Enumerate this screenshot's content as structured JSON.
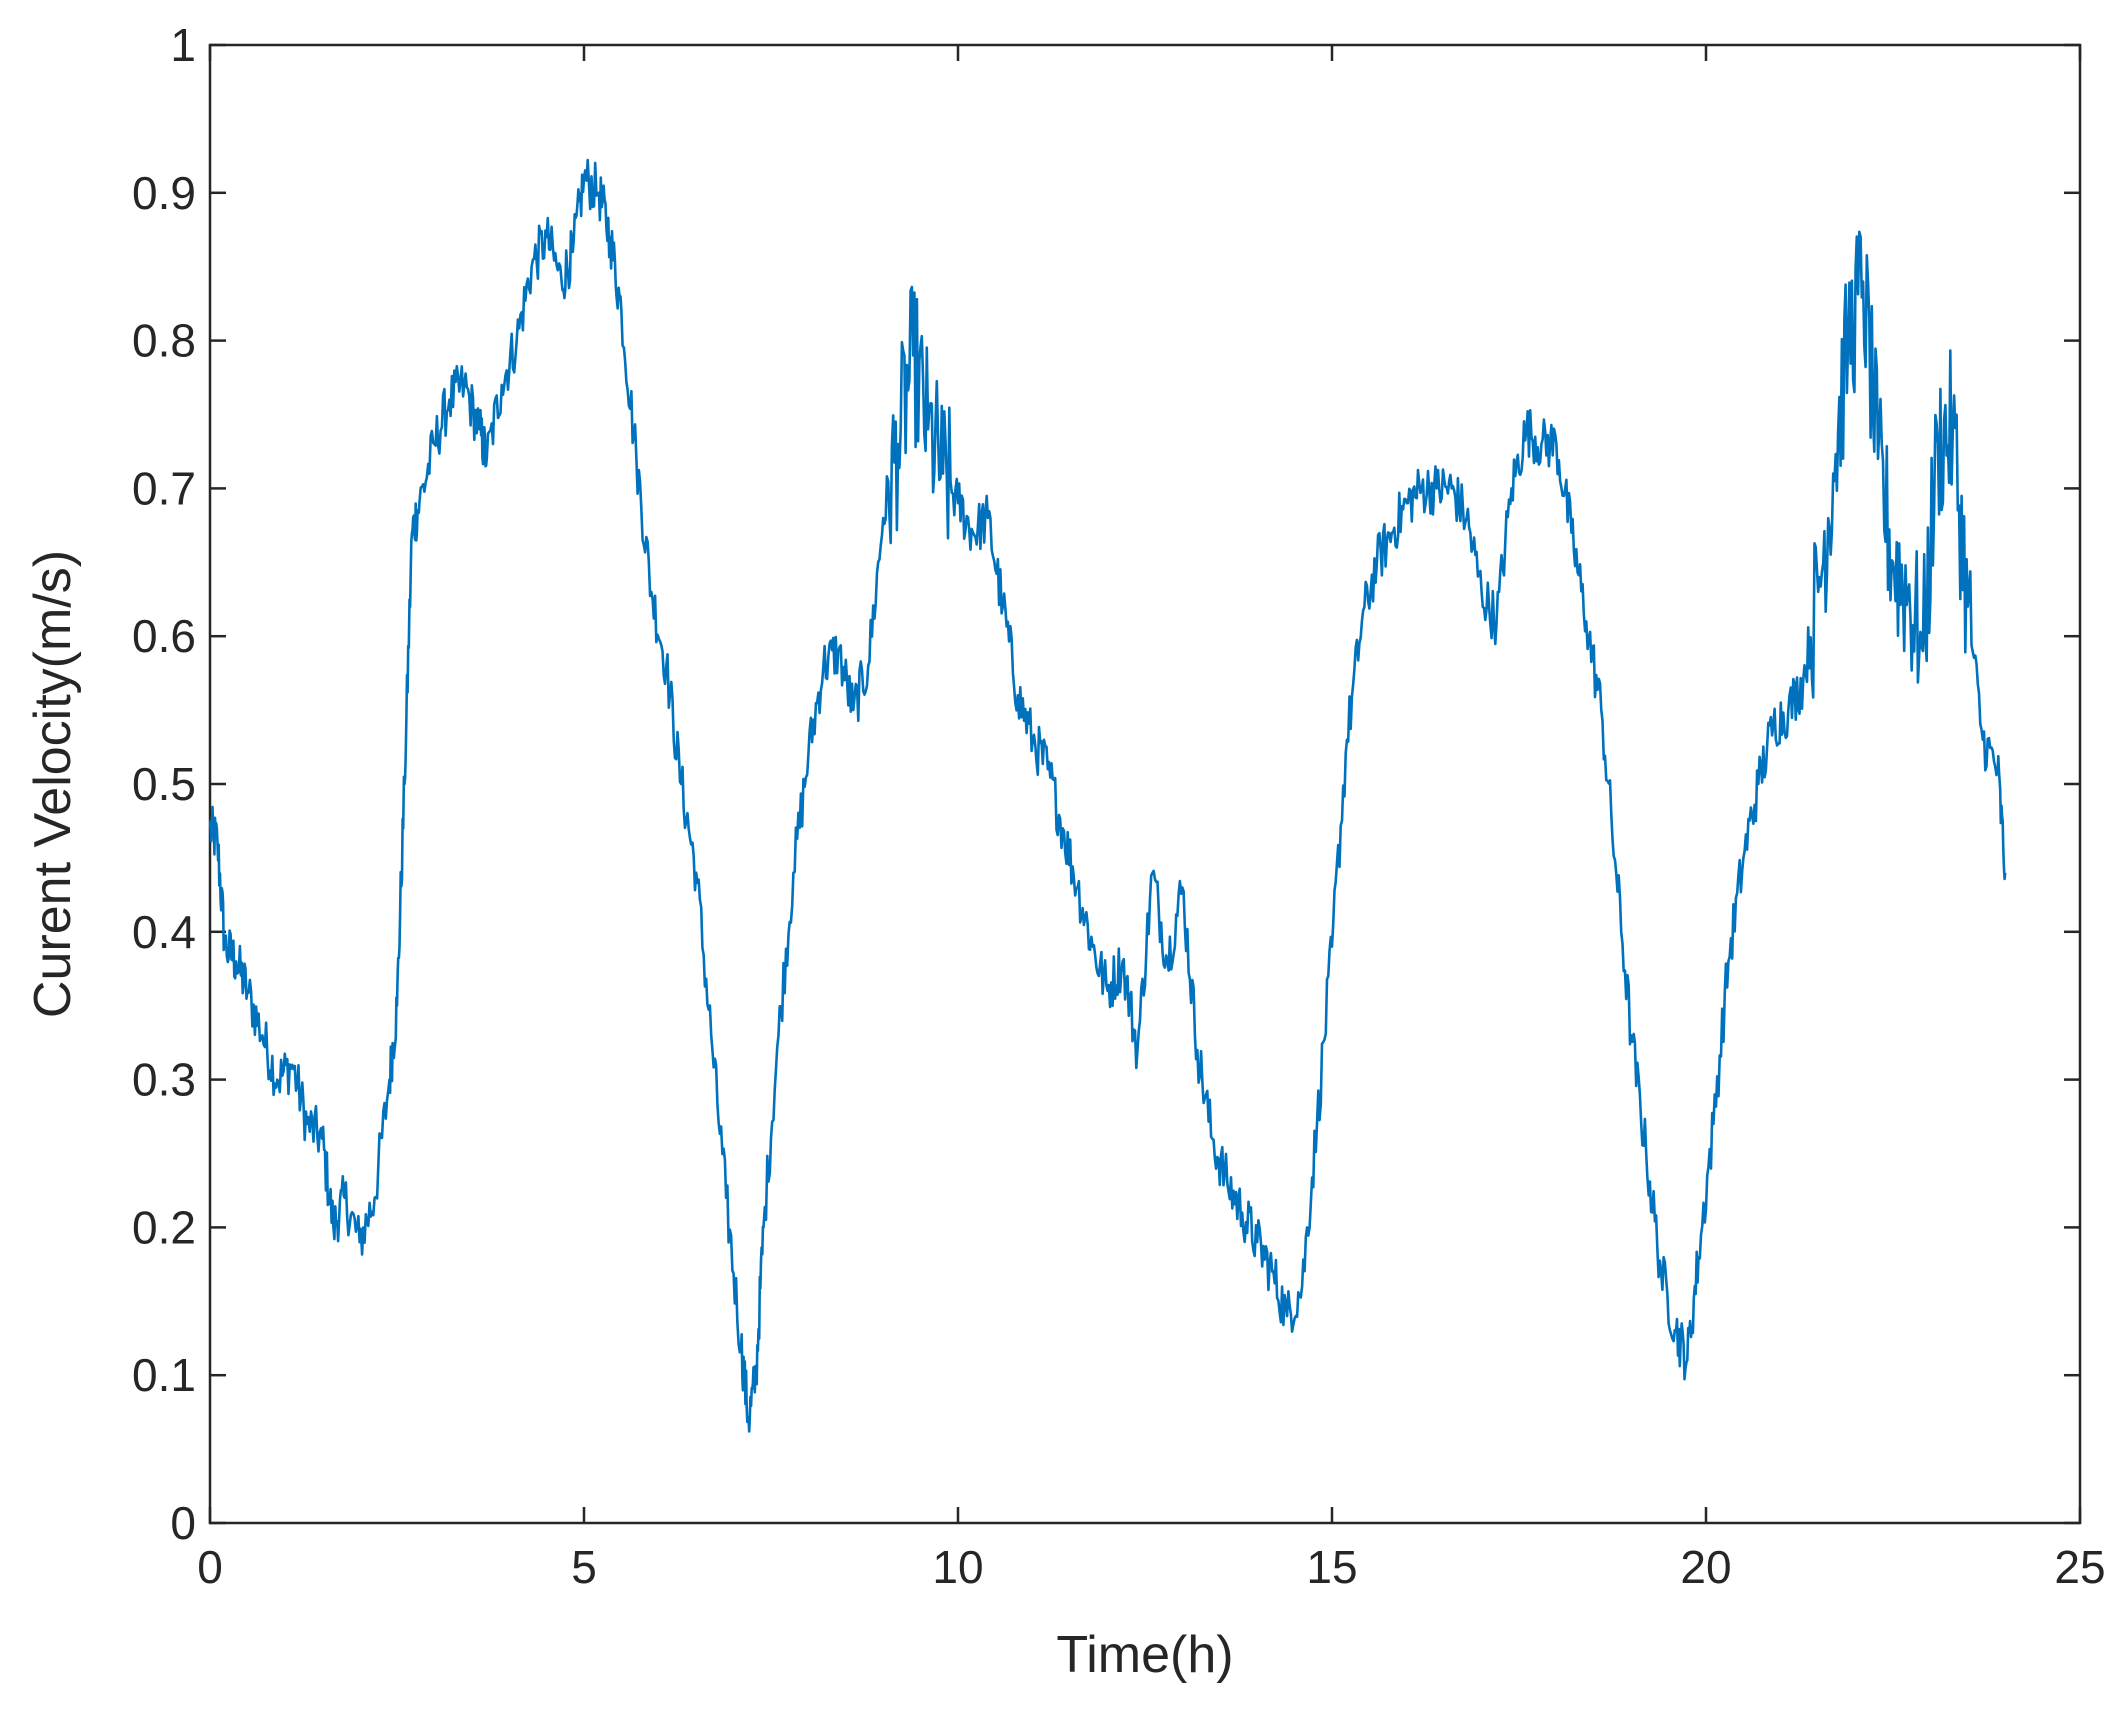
{
  "chart_data": {
    "type": "line",
    "title": "",
    "xlabel": "Time(h)",
    "ylabel": "Curent Velocity(m/s)",
    "xlim": [
      0,
      25
    ],
    "ylim": [
      0,
      1
    ],
    "xticks": [
      "0",
      "5",
      "10",
      "15",
      "20",
      "25"
    ],
    "yticks": [
      "0",
      "0.1",
      "0.2",
      "0.3",
      "0.4",
      "0.5",
      "0.6",
      "0.7",
      "0.8",
      "0.9",
      "1"
    ],
    "grid": false,
    "legend": "none",
    "series": [
      {
        "color": "#0072BD",
        "x": [
          0,
          0.1,
          0.2,
          0.35,
          0.5,
          0.7,
          0.9,
          1.1,
          1.3,
          1.5,
          1.65,
          1.8,
          2.0,
          2.2,
          2.4,
          2.5,
          2.6,
          2.7,
          2.8,
          3.0,
          3.2,
          3.4,
          3.6,
          3.7,
          3.9,
          4.1,
          4.3,
          4.5,
          4.7,
          4.85,
          5.0,
          5.2,
          5.35,
          5.5,
          5.7,
          5.9,
          6.1,
          6.3,
          6.5,
          6.7,
          6.9,
          7.1,
          7.2,
          7.3,
          7.4,
          7.6,
          7.8,
          8.0,
          8.2,
          8.4,
          8.6,
          8.8,
          9.0,
          9.2,
          9.4,
          9.6,
          9.8,
          10.0,
          10.2,
          10.4,
          10.6,
          10.8,
          11.0,
          11.2,
          11.4,
          11.6,
          11.8,
          12.0,
          12.2,
          12.4,
          12.6,
          12.8,
          13.0,
          13.2,
          13.4,
          13.6,
          13.8,
          14.0,
          14.2,
          14.4,
          14.6,
          14.8,
          15.0,
          15.2,
          15.4,
          15.6,
          15.8,
          16.0,
          16.2,
          16.4,
          16.6,
          16.8,
          17.0,
          17.2,
          17.4,
          17.6,
          17.8,
          18.0,
          18.2,
          18.4,
          18.6,
          18.8,
          19.0,
          19.2,
          19.4,
          19.6,
          19.75,
          19.9,
          20.1,
          20.3,
          20.5,
          20.7,
          20.9,
          21.1,
          21.3,
          21.5,
          21.7,
          21.9,
          22.1,
          22.3,
          22.5,
          22.7,
          22.9,
          23.1,
          23.3,
          23.5,
          23.7,
          23.9,
          24.0
        ],
        "y": [
          0.47,
          0.46,
          0.39,
          0.38,
          0.36,
          0.33,
          0.3,
          0.31,
          0.27,
          0.26,
          0.2,
          0.22,
          0.19,
          0.22,
          0.3,
          0.35,
          0.5,
          0.67,
          0.69,
          0.73,
          0.76,
          0.77,
          0.74,
          0.72,
          0.77,
          0.8,
          0.85,
          0.87,
          0.84,
          0.86,
          0.91,
          0.9,
          0.87,
          0.82,
          0.72,
          0.63,
          0.58,
          0.5,
          0.44,
          0.33,
          0.22,
          0.12,
          0.07,
          0.1,
          0.2,
          0.33,
          0.44,
          0.52,
          0.58,
          0.59,
          0.55,
          0.58,
          0.68,
          0.73,
          0.79,
          0.74,
          0.71,
          0.69,
          0.67,
          0.68,
          0.62,
          0.56,
          0.53,
          0.51,
          0.47,
          0.43,
          0.39,
          0.36,
          0.38,
          0.32,
          0.44,
          0.38,
          0.43,
          0.32,
          0.26,
          0.23,
          0.21,
          0.19,
          0.17,
          0.14,
          0.16,
          0.27,
          0.39,
          0.53,
          0.61,
          0.65,
          0.67,
          0.69,
          0.7,
          0.7,
          0.7,
          0.68,
          0.63,
          0.61,
          0.7,
          0.74,
          0.73,
          0.73,
          0.67,
          0.61,
          0.55,
          0.44,
          0.33,
          0.25,
          0.17,
          0.13,
          0.11,
          0.18,
          0.27,
          0.38,
          0.45,
          0.5,
          0.54,
          0.55,
          0.57,
          0.63,
          0.71,
          0.8,
          0.84,
          0.72,
          0.65,
          0.63,
          0.59,
          0.73,
          0.74,
          0.62,
          0.53,
          0.51,
          0.44
        ]
      }
    ]
  }
}
